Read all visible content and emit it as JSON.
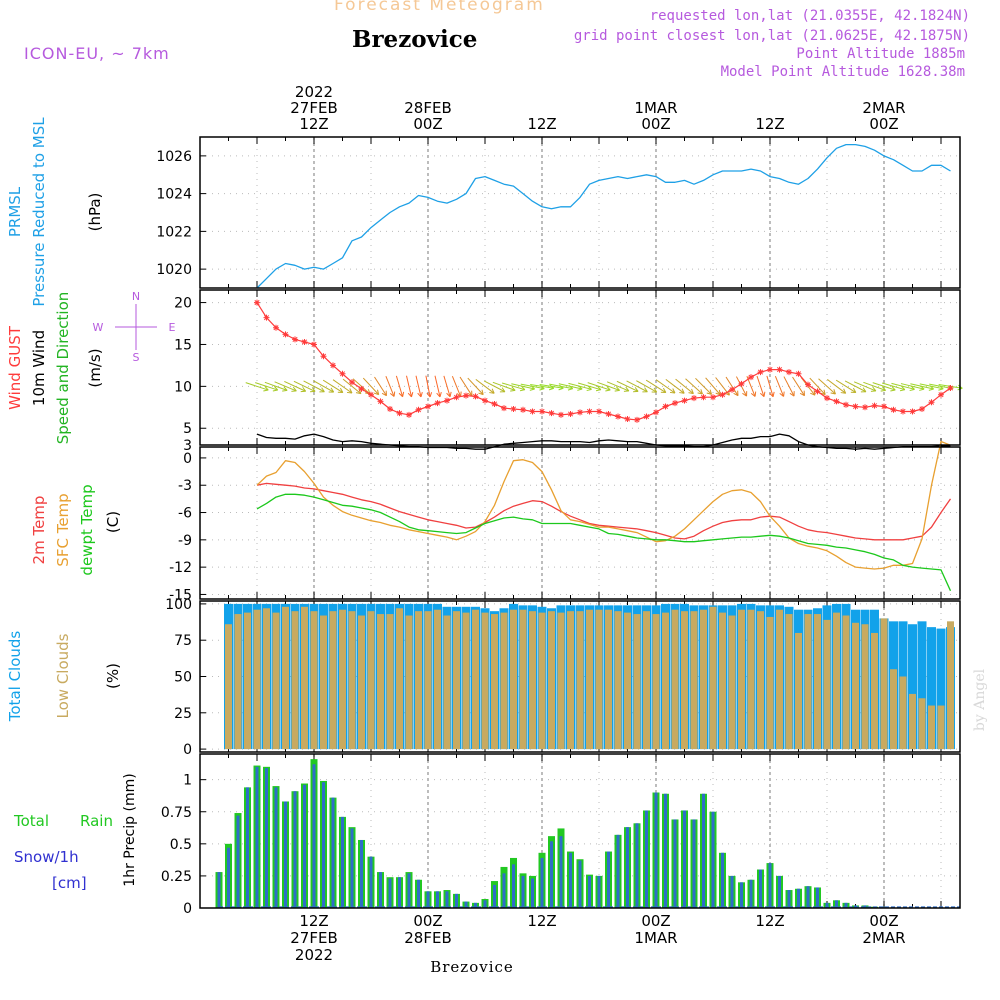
{
  "header": {
    "subtitle": "Forecast Meteogram",
    "title": "Brezovice",
    "model": "ICON-EU, ~ 7km",
    "requested": "requested lon,lat (21.0355E, 42.1824N)",
    "closest": "grid point closest lon,lat (21.0625E, 42.1875N)",
    "alt_point": "Point Altitude 1885m",
    "alt_model": "Model Point Altitude 1628.38m",
    "credit": "by Angel",
    "footer": "Brezovice"
  },
  "time_axis": {
    "top_ticks": [
      {
        "t": 12,
        "lines": [
          "2022",
          "27FEB",
          "12Z"
        ]
      },
      {
        "t": 24,
        "lines": [
          "28FEB",
          "00Z"
        ]
      },
      {
        "t": 36,
        "lines": [
          "12Z"
        ]
      },
      {
        "t": 48,
        "lines": [
          "1MAR",
          "00Z"
        ]
      },
      {
        "t": 60,
        "lines": [
          "12Z"
        ]
      },
      {
        "t": 72,
        "lines": [
          "2MAR",
          "00Z"
        ]
      }
    ],
    "bottom_ticks": [
      {
        "t": 12,
        "lines": [
          "12Z",
          "27FEB",
          "2022"
        ]
      },
      {
        "t": 24,
        "lines": [
          "00Z",
          "28FEB"
        ]
      },
      {
        "t": 36,
        "lines": [
          "12Z"
        ]
      },
      {
        "t": 48,
        "lines": [
          "00Z",
          "1MAR"
        ]
      },
      {
        "t": 60,
        "lines": [
          "12Z"
        ]
      },
      {
        "t": 72,
        "lines": [
          "00Z",
          "2MAR"
        ]
      }
    ]
  },
  "panel_labels": {
    "pressure": [
      "PRMSL",
      "Pressure Reduced to MSL",
      "(hPa)"
    ],
    "wind": [
      "Wind GUST",
      "10m Wind",
      "Speed and Direction",
      "(m/s)"
    ],
    "compass": {
      "n": "N",
      "s": "S",
      "w": "W",
      "e": "E"
    },
    "temp": [
      "2m Temp",
      "SFC Temp",
      "dewpt Temp",
      "(C)"
    ],
    "clouds": [
      "Total Clouds",
      "Low Clouds",
      "(%)"
    ],
    "precip": [
      "Total",
      "Rain",
      "Snow/1h",
      "[cm]",
      "1hr Precip (mm)"
    ]
  },
  "colors": {
    "pressure": "#1ea0e6",
    "gust": "#ff3b3b",
    "wind": "#000000",
    "t2m": "#f04040",
    "sfc": "#e8a030",
    "dew": "#1cc81c",
    "total_cloud": "#12a2ea",
    "low_cloud": "#c8aa60",
    "precip_total": "#22c822",
    "precip_rain": "#2e6ec8",
    "label_purple": "#b65ade",
    "wind_label_green": "#22b422"
  },
  "chart_data": [
    {
      "type": "line",
      "name": "pressure",
      "ylim": [
        1019,
        1027
      ],
      "yticks": [
        1020,
        1022,
        1024,
        1026
      ],
      "x": [
        6,
        7,
        8,
        9,
        10,
        11,
        12,
        13,
        14,
        15,
        16,
        17,
        18,
        19,
        20,
        21,
        22,
        23,
        24,
        25,
        26,
        27,
        28,
        29,
        30,
        31,
        32,
        33,
        34,
        35,
        36,
        37,
        38,
        39,
        40,
        41,
        42,
        43,
        44,
        45,
        46,
        47,
        48,
        49,
        50,
        51,
        52,
        53,
        54,
        55,
        56,
        57,
        58,
        59,
        60,
        61,
        62,
        63,
        64,
        65,
        66,
        67,
        68,
        69,
        70,
        71,
        72,
        73,
        74,
        75,
        76,
        77,
        78,
        79
      ],
      "y": [
        1019.0,
        1019.5,
        1020.0,
        1020.3,
        1020.2,
        1020.0,
        1020.1,
        1020.0,
        1020.3,
        1020.6,
        1021.5,
        1021.7,
        1022.2,
        1022.6,
        1023.0,
        1023.3,
        1023.5,
        1023.9,
        1023.8,
        1023.6,
        1023.5,
        1023.7,
        1024.0,
        1024.8,
        1024.9,
        1024.7,
        1024.5,
        1024.4,
        1024.0,
        1023.6,
        1023.3,
        1023.2,
        1023.3,
        1023.3,
        1023.8,
        1024.5,
        1024.7,
        1024.8,
        1024.9,
        1024.8,
        1024.9,
        1025.0,
        1024.9,
        1024.6,
        1024.6,
        1024.7,
        1024.5,
        1024.7,
        1025.0,
        1025.2,
        1025.2,
        1025.2,
        1025.3,
        1025.2,
        1024.9,
        1024.8,
        1024.6,
        1024.5,
        1024.8,
        1025.3,
        1025.9,
        1026.4,
        1026.6,
        1026.6,
        1026.5,
        1026.3,
        1026.0,
        1025.8,
        1025.5,
        1025.2,
        1025.2,
        1025.5,
        1025.5,
        1025.2
      ]
    },
    {
      "type": "line",
      "name": "wind",
      "ylim": [
        3,
        21.5
      ],
      "yticks": [
        3,
        5,
        10,
        15,
        20
      ],
      "x": [
        6,
        7,
        8,
        9,
        10,
        11,
        12,
        13,
        14,
        15,
        16,
        17,
        18,
        19,
        20,
        21,
        22,
        23,
        24,
        25,
        26,
        27,
        28,
        29,
        30,
        31,
        32,
        33,
        34,
        35,
        36,
        37,
        38,
        39,
        40,
        41,
        42,
        43,
        44,
        45,
        46,
        47,
        48,
        49,
        50,
        51,
        52,
        53,
        54,
        55,
        56,
        57,
        58,
        59,
        60,
        61,
        62,
        63,
        64,
        65,
        66,
        67,
        68,
        69,
        70,
        71,
        72,
        73,
        74,
        75,
        76,
        77,
        78,
        79
      ],
      "gust": [
        20.0,
        18.2,
        17.0,
        16.2,
        15.6,
        15.3,
        15.0,
        13.6,
        12.5,
        11.5,
        10.5,
        9.7,
        9.0,
        8.2,
        7.3,
        6.8,
        6.6,
        7.2,
        7.6,
        8.0,
        8.3,
        8.7,
        8.9,
        8.8,
        8.3,
        7.9,
        7.4,
        7.3,
        7.2,
        7.0,
        7.0,
        6.8,
        6.6,
        6.7,
        6.9,
        7.0,
        7.0,
        6.7,
        6.4,
        6.1,
        6.0,
        6.4,
        6.9,
        7.6,
        8.0,
        8.3,
        8.6,
        8.7,
        8.7,
        9.0,
        9.6,
        10.3,
        11.1,
        11.7,
        12.0,
        12.0,
        11.7,
        11.5,
        10.2,
        9.4,
        8.6,
        8.2,
        7.8,
        7.6,
        7.5,
        7.7,
        7.6,
        7.2,
        7.0,
        7.0,
        7.3,
        8.1,
        9.0,
        9.8
      ],
      "speed": [
        4.3,
        3.9,
        3.8,
        3.8,
        3.7,
        4.1,
        4.3,
        4.0,
        3.6,
        3.4,
        3.5,
        3.4,
        3.2,
        3.1,
        3.0,
        2.9,
        2.8,
        2.8,
        2.7,
        2.7,
        2.7,
        2.6,
        2.6,
        2.5,
        2.5,
        2.8,
        3.1,
        3.2,
        3.3,
        3.4,
        3.5,
        3.5,
        3.4,
        3.4,
        3.4,
        3.3,
        3.5,
        3.6,
        3.5,
        3.4,
        3.4,
        3.2,
        3.0,
        2.9,
        2.9,
        2.9,
        2.8,
        2.8,
        3.0,
        3.3,
        3.6,
        3.8,
        3.8,
        4.0,
        4.0,
        4.3,
        4.1,
        3.4,
        3.0,
        2.8,
        2.7,
        2.6,
        2.6,
        2.5,
        2.6,
        2.5,
        2.6,
        2.7,
        2.8,
        2.8,
        2.8,
        2.8,
        2.9,
        2.9
      ],
      "direction": [
        110,
        110,
        112,
        115,
        117,
        118,
        120,
        122,
        125,
        128,
        132,
        135,
        140,
        150,
        160,
        165,
        168,
        168,
        170,
        168,
        165,
        160,
        150,
        140,
        130,
        120,
        112,
        108,
        104,
        102,
        100,
        100,
        102,
        104,
        106,
        108,
        110,
        112,
        115,
        118,
        120,
        122,
        125,
        128,
        130,
        132,
        135,
        138,
        142,
        145,
        150,
        155,
        160,
        163,
        165,
        160,
        155,
        150,
        145,
        140,
        135,
        130,
        125,
        120,
        115,
        112,
        110,
        108,
        106,
        105,
        104,
        103,
        102,
        100
      ]
    },
    {
      "type": "line",
      "name": "temperature",
      "ylim": [
        -15.5,
        1.2
      ],
      "yticks": [
        -15,
        -12,
        -9,
        -6,
        -3,
        0
      ],
      "x": [
        6,
        7,
        8,
        9,
        10,
        11,
        12,
        13,
        14,
        15,
        16,
        17,
        18,
        19,
        20,
        21,
        22,
        23,
        24,
        25,
        26,
        27,
        28,
        29,
        30,
        31,
        32,
        33,
        34,
        35,
        36,
        37,
        38,
        39,
        40,
        41,
        42,
        43,
        44,
        45,
        46,
        47,
        48,
        49,
        50,
        51,
        52,
        53,
        54,
        55,
        56,
        57,
        58,
        59,
        60,
        61,
        62,
        63,
        64,
        65,
        66,
        67,
        68,
        69,
        70,
        71,
        72,
        73,
        74,
        75,
        76,
        77,
        78,
        79
      ],
      "t2m": [
        -3.0,
        -2.8,
        -2.9,
        -3.0,
        -3.1,
        -3.3,
        -3.4,
        -3.6,
        -3.8,
        -4.0,
        -4.3,
        -4.6,
        -4.8,
        -5.1,
        -5.5,
        -5.9,
        -6.2,
        -6.5,
        -6.8,
        -7.0,
        -7.2,
        -7.4,
        -7.7,
        -7.6,
        -7.1,
        -6.5,
        -5.8,
        -5.3,
        -5.0,
        -4.7,
        -4.8,
        -5.3,
        -5.9,
        -6.4,
        -6.8,
        -7.2,
        -7.4,
        -7.5,
        -7.6,
        -7.7,
        -7.8,
        -8.0,
        -8.2,
        -8.5,
        -8.8,
        -8.9,
        -8.6,
        -8.0,
        -7.5,
        -7.1,
        -6.9,
        -6.8,
        -6.8,
        -6.5,
        -6.4,
        -6.5,
        -7.0,
        -7.5,
        -7.9,
        -8.1,
        -8.2,
        -8.4,
        -8.6,
        -8.8,
        -8.9,
        -9.0,
        -9.0,
        -9.0,
        -9.0,
        -8.8,
        -8.6,
        -7.6,
        -6.0,
        -4.5
      ],
      "sfc": [
        -3.0,
        -2.0,
        -1.6,
        -0.3,
        -0.5,
        -1.5,
        -2.8,
        -4.3,
        -5.2,
        -5.9,
        -6.3,
        -6.6,
        -6.9,
        -7.1,
        -7.4,
        -7.6,
        -7.9,
        -8.1,
        -8.3,
        -8.5,
        -8.7,
        -9.0,
        -8.6,
        -8.1,
        -7.0,
        -5.2,
        -2.6,
        -0.3,
        -0.2,
        -0.5,
        -1.5,
        -3.5,
        -5.8,
        -6.8,
        -7.0,
        -7.3,
        -7.6,
        -7.6,
        -7.8,
        -8.0,
        -8.2,
        -8.7,
        -9.2,
        -9.1,
        -8.6,
        -7.8,
        -6.8,
        -5.8,
        -4.8,
        -4.0,
        -3.6,
        -3.5,
        -3.8,
        -4.8,
        -6.4,
        -7.5,
        -8.8,
        -9.4,
        -9.7,
        -9.9,
        -10.2,
        -10.8,
        -11.5,
        -12.0,
        -12.1,
        -12.2,
        -12.1,
        -11.8,
        -11.8,
        -11.6,
        -8.9,
        -3.0,
        1.8,
        1.4
      ],
      "dew": [
        -5.6,
        -5.0,
        -4.3,
        -4.0,
        -4.0,
        -4.1,
        -4.3,
        -4.6,
        -4.9,
        -5.2,
        -5.3,
        -5.5,
        -5.7,
        -6.0,
        -6.5,
        -7.0,
        -7.6,
        -7.9,
        -8.0,
        -8.1,
        -8.2,
        -8.3,
        -8.2,
        -7.7,
        -7.2,
        -6.9,
        -6.6,
        -6.5,
        -6.7,
        -6.8,
        -7.2,
        -7.2,
        -7.2,
        -7.2,
        -7.4,
        -7.6,
        -7.8,
        -8.3,
        -8.4,
        -8.6,
        -8.8,
        -8.9,
        -9.0,
        -9.0,
        -9.1,
        -9.2,
        -9.2,
        -9.1,
        -9.0,
        -8.9,
        -8.8,
        -8.7,
        -8.7,
        -8.6,
        -8.5,
        -8.6,
        -8.8,
        -9.1,
        -9.4,
        -9.5,
        -9.6,
        -9.8,
        -9.9,
        -10.1,
        -10.3,
        -10.6,
        -11.0,
        -11.2,
        -11.8,
        -12.0,
        -12.1,
        -12.2,
        -12.3,
        -14.6
      ]
    },
    {
      "type": "bar",
      "name": "clouds",
      "ylim": [
        -2,
        102
      ],
      "yticks": [
        0,
        25,
        50,
        75,
        100
      ],
      "x": [
        3,
        4,
        5,
        6,
        7,
        8,
        9,
        10,
        11,
        12,
        13,
        14,
        15,
        16,
        17,
        18,
        19,
        20,
        21,
        22,
        23,
        24,
        25,
        26,
        27,
        28,
        29,
        30,
        31,
        32,
        33,
        34,
        35,
        36,
        37,
        38,
        39,
        40,
        41,
        42,
        43,
        44,
        45,
        46,
        47,
        48,
        49,
        50,
        51,
        52,
        53,
        54,
        55,
        56,
        57,
        58,
        59,
        60,
        61,
        62,
        63,
        64,
        65,
        66,
        67,
        68,
        69,
        70,
        71,
        72,
        73,
        74,
        75,
        76,
        77,
        78,
        79
      ],
      "total": [
        100,
        100,
        100,
        100,
        100,
        100,
        100,
        100,
        100,
        100,
        100,
        100,
        100,
        100,
        100,
        100,
        100,
        100,
        100,
        100,
        100,
        100,
        100,
        98,
        98,
        98,
        98,
        97,
        95,
        97,
        100,
        99,
        99,
        98,
        97,
        99,
        99,
        99,
        99,
        99,
        99,
        99,
        99,
        99,
        99,
        99,
        100,
        100,
        100,
        99,
        99,
        99,
        99,
        99,
        100,
        100,
        99,
        99,
        99,
        98,
        96,
        96,
        97,
        99,
        100,
        100,
        96,
        96,
        96,
        90,
        88,
        88,
        86,
        88,
        84,
        83,
        84
      ],
      "low": [
        86,
        93,
        94,
        96,
        97,
        94,
        98,
        95,
        98,
        95,
        92,
        95,
        96,
        95,
        92,
        95,
        93,
        93,
        97,
        92,
        95,
        95,
        96,
        92,
        95,
        94,
        96,
        94,
        93,
        94,
        96,
        96,
        95,
        94,
        95,
        94,
        95,
        95,
        96,
        96,
        96,
        95,
        94,
        93,
        95,
        93,
        94,
        96,
        95,
        95,
        96,
        98,
        94,
        92,
        96,
        96,
        95,
        91,
        96,
        93,
        80,
        93,
        93,
        89,
        94,
        92,
        87,
        86,
        80,
        90,
        55,
        50,
        38,
        35,
        30,
        30,
        88
      ],
      "note": "cloud cover in percent"
    },
    {
      "type": "bar",
      "name": "precip",
      "ylim": [
        0,
        1.2
      ],
      "yticks": [
        0,
        0.25,
        0.5,
        0.75,
        1
      ],
      "x": [
        2,
        3,
        4,
        5,
        6,
        7,
        8,
        9,
        10,
        11,
        12,
        13,
        14,
        15,
        16,
        17,
        18,
        19,
        20,
        21,
        22,
        23,
        24,
        25,
        26,
        27,
        28,
        29,
        30,
        31,
        32,
        33,
        34,
        35,
        36,
        37,
        38,
        39,
        40,
        41,
        42,
        43,
        44,
        45,
        46,
        47,
        48,
        49,
        50,
        51,
        52,
        53,
        54,
        55,
        56,
        57,
        58,
        59,
        60,
        61,
        62,
        63,
        64,
        65,
        66,
        67,
        68,
        69,
        70,
        71,
        72,
        73,
        74,
        75,
        76,
        77,
        78,
        79
      ],
      "total": [
        0.28,
        0.5,
        0.74,
        0.94,
        1.11,
        1.1,
        0.95,
        0.83,
        0.91,
        0.97,
        1.16,
        0.99,
        0.86,
        0.71,
        0.63,
        0.53,
        0.4,
        0.28,
        0.24,
        0.24,
        0.28,
        0.22,
        0.13,
        0.13,
        0.14,
        0.11,
        0.05,
        0.04,
        0.07,
        0.21,
        0.32,
        0.39,
        0.27,
        0.25,
        0.43,
        0.56,
        0.62,
        0.44,
        0.38,
        0.26,
        0.25,
        0.44,
        0.57,
        0.63,
        0.66,
        0.76,
        0.9,
        0.89,
        0.69,
        0.76,
        0.69,
        0.89,
        0.75,
        0.43,
        0.25,
        0.2,
        0.22,
        0.3,
        0.35,
        0.25,
        0.14,
        0.15,
        0.17,
        0.16,
        0.04,
        0.06,
        0.04,
        0.02,
        0.02,
        0.01,
        0.01,
        0.0,
        0.0,
        0.0,
        0.0,
        0.0,
        0.0,
        0.0
      ],
      "rain": [
        0.28,
        0.47,
        0.72,
        0.94,
        1.1,
        1.09,
        0.94,
        0.83,
        0.91,
        0.96,
        1.12,
        0.98,
        0.86,
        0.71,
        0.62,
        0.53,
        0.4,
        0.28,
        0.23,
        0.24,
        0.27,
        0.22,
        0.13,
        0.13,
        0.13,
        0.11,
        0.05,
        0.04,
        0.06,
        0.18,
        0.27,
        0.34,
        0.25,
        0.23,
        0.39,
        0.52,
        0.56,
        0.43,
        0.37,
        0.25,
        0.25,
        0.44,
        0.57,
        0.63,
        0.66,
        0.76,
        0.9,
        0.89,
        0.69,
        0.76,
        0.69,
        0.89,
        0.75,
        0.43,
        0.25,
        0.2,
        0.22,
        0.3,
        0.35,
        0.25,
        0.14,
        0.15,
        0.17,
        0.16,
        0.04,
        0.06,
        0.04,
        0.02,
        0.02,
        0.01,
        0.01,
        0.0,
        0.0,
        0.0,
        0.0,
        0.0,
        0.0,
        0.0
      ]
    }
  ]
}
